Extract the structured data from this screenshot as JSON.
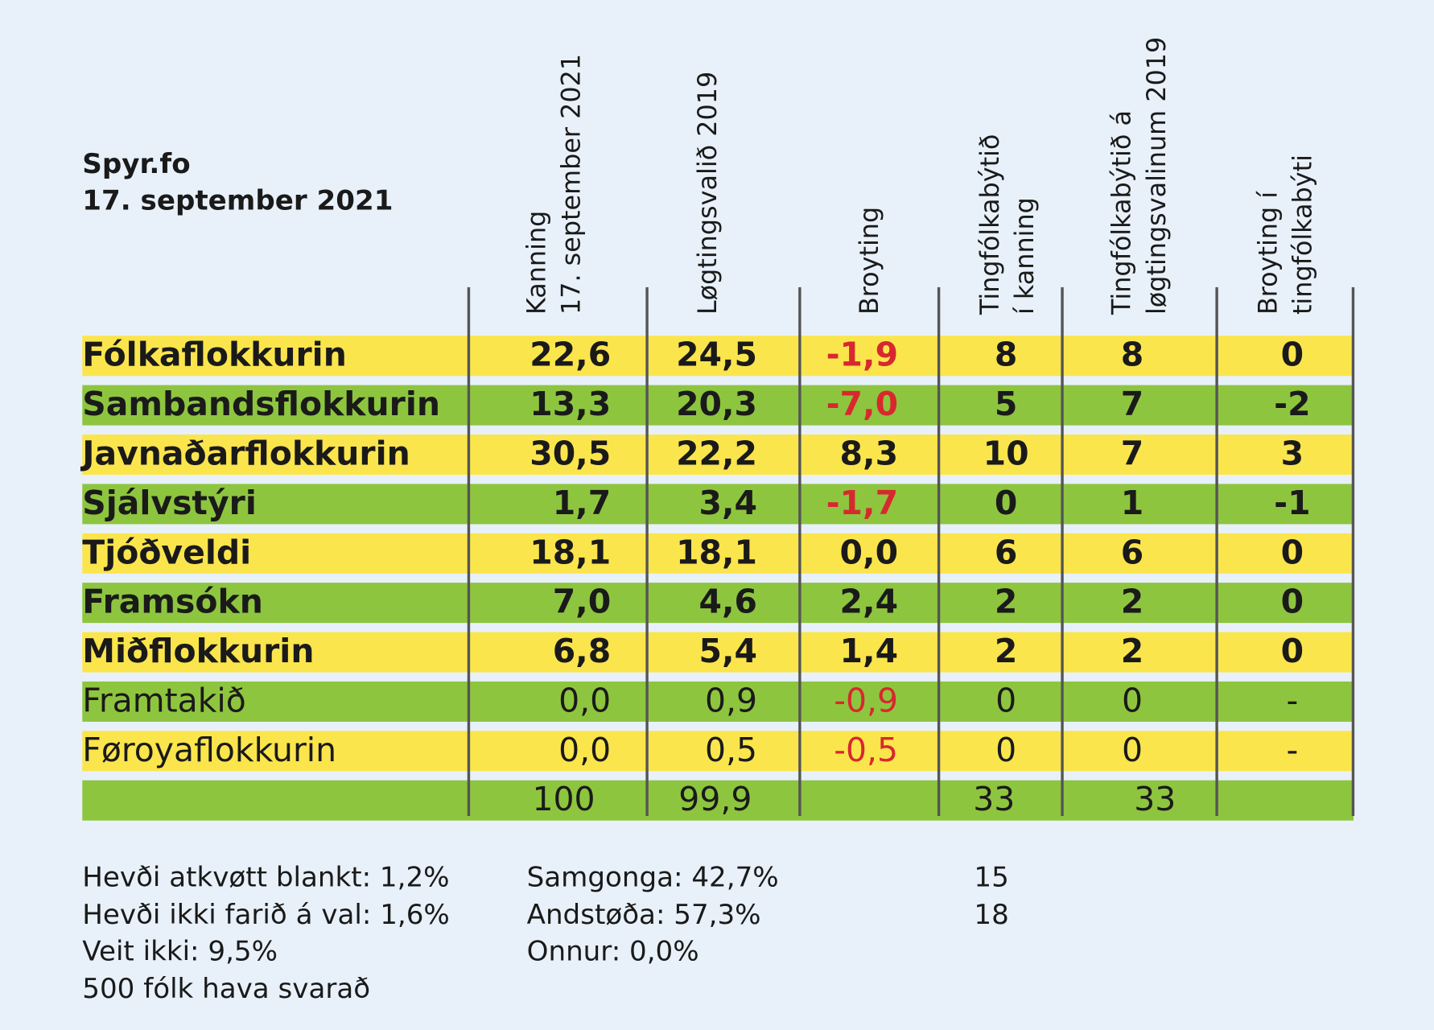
{
  "source": {
    "line1": "Spyr.fo",
    "line2": "17. september 2021"
  },
  "headers": [
    {
      "line1": "Kanning",
      "line2": "17. september 2021"
    },
    {
      "line1": "Løgtingsvalið 2019",
      "line2": ""
    },
    {
      "line1": "Broyting",
      "line2": ""
    },
    {
      "line1": "Tingfólkabýtið",
      "line2": "í kanning"
    },
    {
      "line1": "Tingfólkabýtið á",
      "line2": "løgtingsvalinum 2019"
    },
    {
      "line1": "Broyting í",
      "line2": "tingfólkabýti"
    }
  ],
  "rows": [
    {
      "name": "Fólkaflokkurin",
      "c1": "22,6",
      "c2": "24,5",
      "c3": "-1,9",
      "c4": "8",
      "c5": "8",
      "c6": "0"
    },
    {
      "name": "Sambandsflokkurin",
      "c1": "13,3",
      "c2": "20,3",
      "c3": "-7,0",
      "c4": "5",
      "c5": "7",
      "c6": "-2"
    },
    {
      "name": "Javnaðarflokkurin",
      "c1": "30,5",
      "c2": "22,2",
      "c3": "8,3",
      "c4": "10",
      "c5": "7",
      "c6": "3"
    },
    {
      "name": "Sjálvstýri",
      "c1": "1,7",
      "c2": "3,4",
      "c3": "-1,7",
      "c4": "0",
      "c5": "1",
      "c6": "-1"
    },
    {
      "name": "Tjóðveldi",
      "c1": "18,1",
      "c2": "18,1",
      "c3": "0,0",
      "c4": "6",
      "c5": "6",
      "c6": "0"
    },
    {
      "name": "Framsókn",
      "c1": "7,0",
      "c2": "4,6",
      "c3": "2,4",
      "c4": "2",
      "c5": "2",
      "c6": "0"
    },
    {
      "name": "Miðflokkurin",
      "c1": "6,8",
      "c2": "5,4",
      "c3": "1,4",
      "c4": "2",
      "c5": "2",
      "c6": "0"
    },
    {
      "name": "Framtakið",
      "c1": "0,0",
      "c2": "0,9",
      "c3": "-0,9",
      "c4": "0",
      "c5": "0",
      "c6": "-"
    },
    {
      "name": "Føroyaflokkurin",
      "c1": "0,0",
      "c2": "0,5",
      "c3": "-0,5",
      "c4": "0",
      "c5": "0",
      "c6": "-"
    }
  ],
  "totals": {
    "c1": "100",
    "c2": "99,9",
    "c4": "33",
    "c5": "33"
  },
  "notes_left": [
    "Hevði atkvøtt blankt: 1,2%",
    "Hevði ikki farið á val: 1,6%",
    "Veit ikki: 9,5%",
    "500 fólk hava svarað"
  ],
  "notes_mid": [
    "Samgonga: 42,7%",
    "Andstøða: 57,3%",
    "Onnur: 0,0%"
  ],
  "notes_right": [
    "15",
    "18"
  ],
  "colors": {
    "yellow": "#fbe54c",
    "green": "#8ec53f",
    "negative": "#d8282f",
    "background": "#e8f1fa"
  }
}
